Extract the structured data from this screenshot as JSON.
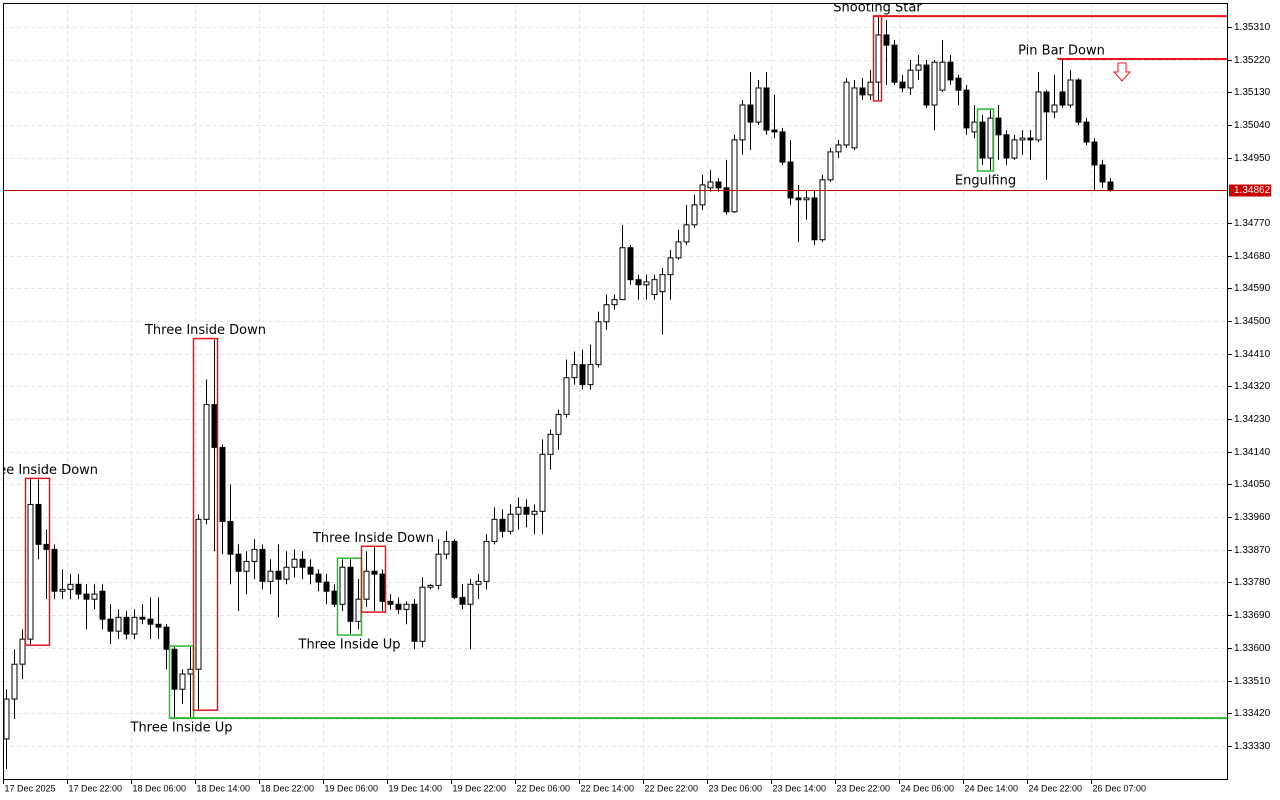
{
  "chart_data": {
    "type": "candlestick",
    "ylim": [
      1.33236,
      1.35376
    ],
    "yticks": [
      {
        "value": 1.3531,
        "label": "1.35310"
      },
      {
        "value": 1.3522,
        "label": "1.35220"
      },
      {
        "value": 1.3513,
        "label": "1.35130"
      },
      {
        "value": 1.3504,
        "label": "1.35040"
      },
      {
        "value": 1.3495,
        "label": "1.34950"
      },
      {
        "value": 1.3477,
        "label": "1.34770"
      },
      {
        "value": 1.3468,
        "label": "1.34680"
      },
      {
        "value": 1.3459,
        "label": "1.34590"
      },
      {
        "value": 1.345,
        "label": "1.34500"
      },
      {
        "value": 1.3441,
        "label": "1.34410"
      },
      {
        "value": 1.3432,
        "label": "1.34320"
      },
      {
        "value": 1.3423,
        "label": "1.34230"
      },
      {
        "value": 1.3414,
        "label": "1.34140"
      },
      {
        "value": 1.3405,
        "label": "1.34050"
      },
      {
        "value": 1.3396,
        "label": "1.33960"
      },
      {
        "value": 1.3387,
        "label": "1.33870"
      },
      {
        "value": 1.3378,
        "label": "1.33780"
      },
      {
        "value": 1.3369,
        "label": "1.33690"
      },
      {
        "value": 1.336,
        "label": "1.33600"
      },
      {
        "value": 1.3351,
        "label": "1.33510"
      },
      {
        "value": 1.3342,
        "label": "1.33420"
      },
      {
        "value": 1.3333,
        "label": "1.33330"
      }
    ],
    "grid": true,
    "current_price": 1.34862,
    "current_price_color": "#c80000",
    "up_color": "#ffffff",
    "down_color": "#000000",
    "categories": [
      "17 Dec 2025",
      null,
      null,
      null,
      null,
      null,
      null,
      null,
      "17 Dec 22:00",
      null,
      null,
      null,
      null,
      null,
      null,
      null,
      "18 Dec 06:00",
      null,
      null,
      null,
      null,
      null,
      null,
      null,
      "18 Dec 14:00",
      null,
      null,
      null,
      null,
      null,
      null,
      null,
      "18 Dec 22:00",
      null,
      null,
      null,
      null,
      null,
      null,
      null,
      "19 Dec 06:00",
      null,
      null,
      null,
      null,
      null,
      null,
      null,
      "19 Dec 14:00",
      null,
      null,
      null,
      null,
      null,
      null,
      null,
      "19 Dec 22:00",
      null,
      null,
      null,
      null,
      null,
      null,
      null,
      "22 Dec 06:00",
      null,
      null,
      null,
      null,
      null,
      null,
      null,
      "22 Dec 14:00",
      null,
      null,
      null,
      null,
      null,
      null,
      null,
      "22 Dec 22:00",
      null,
      null,
      null,
      null,
      null,
      null,
      null,
      "23 Dec 06:00",
      null,
      null,
      null,
      null,
      null,
      null,
      null,
      "23 Dec 14:00",
      null,
      null,
      null,
      null,
      null,
      null,
      null,
      "23 Dec 22:00",
      null,
      null,
      null,
      null,
      null,
      null,
      null,
      "24 Dec 06:00",
      null,
      null,
      null,
      null,
      null,
      null,
      null,
      "24 Dec 14:00",
      null,
      null,
      null,
      null,
      null,
      null,
      null,
      "24 Dec 22:00",
      null,
      null,
      null,
      null,
      null,
      null,
      null,
      "26 Dec 07:00",
      null,
      null
    ],
    "open": [
      1.33349,
      1.33459,
      1.33555,
      1.33624,
      1.33995,
      1.33885,
      1.33871,
      1.33756,
      1.33761,
      1.33775,
      1.33748,
      1.33734,
      1.33756,
      1.33679,
      1.33646,
      1.33684,
      1.33638,
      1.33684,
      1.33679,
      1.33665,
      1.33657,
      1.33596,
      1.33486,
      1.33528,
      1.33541,
      1.33954,
      1.3427,
      1.34152,
      1.33948,
      1.33858,
      1.33811,
      1.33838,
      1.33871,
      1.33783,
      1.33811,
      1.33789,
      1.33822,
      1.33844,
      1.33822,
      1.33803,
      1.33781,
      1.33756,
      1.3372,
      1.33822,
      1.33673,
      1.33734,
      1.33811,
      1.33803,
      1.33728,
      1.3372,
      1.33706,
      1.3372,
      1.33618,
      1.33767,
      1.33772,
      1.33858,
      1.33893,
      1.33739,
      1.3372,
      1.33775,
      1.33783,
      1.33893,
      1.33954,
      1.33921,
      1.33968,
      1.33987,
      1.33968,
      1.33976,
      1.34133,
      1.34188,
      1.34243,
      1.34344,
      1.3438,
      1.34325,
      1.3438,
      1.34498,
      1.34545,
      1.34559,
      1.34702,
      1.34614,
      1.346,
      1.34573,
      1.34581,
      1.34628,
      1.34674,
      1.34718,
      1.34765,
      1.3482,
      1.34867,
      1.34883,
      1.34867,
      1.34801,
      1.34999,
      1.35095,
      1.35048,
      1.35142,
      1.35026,
      1.35021,
      1.34938,
      1.34839,
      1.34834,
      1.34839,
      1.34724,
      1.34889,
      1.34966,
      1.34985,
      1.34977,
      1.35142,
      1.35123,
      1.35158,
      1.35288,
      1.3526,
      1.35158,
      1.35142,
      1.35191,
      1.35205,
      1.35095,
      1.35136,
      1.35213,
      1.35169,
      1.35136,
      1.35021,
      1.35048,
      1.34949,
      1.35059,
      1.35013,
      1.34949,
      1.34999,
      1.35004,
      1.34999,
      1.35131,
      1.35076,
      1.35131,
      1.35095,
      1.35164,
      1.35048,
      1.34993,
      1.3493,
      1.34883
    ],
    "high": [
      1.33486,
      1.33596,
      1.33651,
      1.34064,
      1.34064,
      1.33926,
      1.33885,
      1.33816,
      1.33803,
      1.33803,
      1.33775,
      1.33775,
      1.33775,
      1.3372,
      1.33706,
      1.33701,
      1.33706,
      1.3372,
      1.33739,
      1.33739,
      1.33665,
      1.33602,
      1.33541,
      1.33602,
      1.33968,
      1.34339,
      1.34449,
      1.3416,
      1.3405,
      1.33885,
      1.33866,
      1.33899,
      1.33885,
      1.33844,
      1.33885,
      1.33866,
      1.33871,
      1.33866,
      1.33844,
      1.33816,
      1.33803,
      1.33775,
      1.33844,
      1.33844,
      1.33789,
      1.33866,
      1.33877,
      1.33816,
      1.33748,
      1.33739,
      1.33728,
      1.33734,
      1.33794,
      1.33775,
      1.33899,
      1.33921,
      1.33899,
      1.33775,
      1.33789,
      1.33803,
      1.33913,
      1.33987,
      1.33981,
      1.33995,
      1.34014,
      1.34009,
      1.33995,
      1.34174,
      1.34201,
      1.34256,
      1.34394,
      1.34416,
      1.34421,
      1.34435,
      1.34526,
      1.34573,
      1.34573,
      1.34765,
      1.3471,
      1.34628,
      1.34628,
      1.34628,
      1.34647,
      1.34696,
      1.34751,
      1.3482,
      1.34848,
      1.34903,
      1.34916,
      1.34894,
      1.34944,
      1.35013,
      1.35109,
      1.35186,
      1.35164,
      1.35186,
      1.35123,
      1.35032,
      1.34999,
      1.34875,
      1.34861,
      1.34861,
      1.34903,
      1.34977,
      1.34999,
      1.35169,
      1.35164,
      1.35169,
      1.35191,
      1.35337,
      1.35329,
      1.35274,
      1.35178,
      1.35219,
      1.35233,
      1.35219,
      1.35219,
      1.35274,
      1.35233,
      1.35178,
      1.3515,
      1.35095,
      1.35068,
      1.35081,
      1.35095,
      1.35026,
      1.35013,
      1.35026,
      1.35026,
      1.35186,
      1.35136,
      1.35178,
      1.35219,
      1.35191,
      1.35169,
      1.35059,
      1.35004,
      1.34944,
      1.34894
    ],
    "low": [
      1.33266,
      1.33404,
      1.33514,
      1.3361,
      1.33844,
      1.33734,
      1.33734,
      1.33734,
      1.33734,
      1.33734,
      1.33651,
      1.33706,
      1.33651,
      1.3361,
      1.33624,
      1.33624,
      1.33624,
      1.33665,
      1.33624,
      1.33624,
      1.33541,
      1.33409,
      1.33445,
      1.33409,
      1.33431,
      1.3394,
      1.33866,
      1.33858,
      1.33775,
      1.33701,
      1.33748,
      1.33789,
      1.33761,
      1.33748,
      1.33684,
      1.33775,
      1.33794,
      1.33789,
      1.33775,
      1.33756,
      1.3372,
      1.33712,
      1.33701,
      1.33638,
      1.33651,
      1.33712,
      1.33701,
      1.33701,
      1.33706,
      1.33693,
      1.33665,
      1.33596,
      1.33602,
      1.33761,
      1.33761,
      1.33844,
      1.33734,
      1.33706,
      1.33596,
      1.33734,
      1.33761,
      1.33885,
      1.33904,
      1.33913,
      1.33926,
      1.33932,
      1.33913,
      1.33913,
      1.34091,
      1.34146,
      1.34234,
      1.34325,
      1.34311,
      1.34311,
      1.34372,
      1.34476,
      1.34531,
      1.34559,
      1.346,
      1.34559,
      1.34559,
      1.34559,
      1.34463,
      1.34559,
      1.34669,
      1.3471,
      1.34757,
      1.34806,
      1.34856,
      1.34856,
      1.34793,
      1.34798,
      1.34958,
      1.34971,
      1.3504,
      1.35013,
      1.35004,
      1.3493,
      1.3482,
      1.34718,
      1.34779,
      1.3471,
      1.34718,
      1.34883,
      1.34949,
      1.34977,
      1.34971,
      1.35109,
      1.35109,
      1.35109,
      1.3515,
      1.3515,
      1.35131,
      1.35123,
      1.35164,
      1.35087,
      1.35026,
      1.35131,
      1.3515,
      1.35095,
      1.35013,
      1.35004,
      1.3493,
      1.34916,
      1.34944,
      1.3493,
      1.34944,
      1.34958,
      1.34944,
      1.34993,
      1.34889,
      1.35059,
      1.35087,
      1.35087,
      1.3504,
      1.34985,
      1.34861,
      1.34867,
      1.34856
    ],
    "close": [
      1.33459,
      1.33555,
      1.33624,
      1.33995,
      1.33885,
      1.33871,
      1.33756,
      1.33761,
      1.33775,
      1.33748,
      1.33734,
      1.33748,
      1.33679,
      1.33646,
      1.33684,
      1.33638,
      1.33684,
      1.33679,
      1.33665,
      1.33657,
      1.33596,
      1.33486,
      1.33528,
      1.33541,
      1.33954,
      1.3427,
      1.34152,
      1.33948,
      1.33858,
      1.33811,
      1.33838,
      1.33871,
      1.33783,
      1.33811,
      1.33789,
      1.33822,
      1.33844,
      1.33822,
      1.33803,
      1.33781,
      1.33756,
      1.3372,
      1.33822,
      1.33673,
      1.33734,
      1.33811,
      1.33803,
      1.33728,
      1.3372,
      1.33706,
      1.3372,
      1.33618,
      1.33767,
      1.33772,
      1.33858,
      1.33893,
      1.33739,
      1.3372,
      1.33775,
      1.33783,
      1.33893,
      1.33954,
      1.33921,
      1.33968,
      1.33987,
      1.33968,
      1.33976,
      1.34133,
      1.34188,
      1.34243,
      1.34344,
      1.3438,
      1.34325,
      1.3438,
      1.34498,
      1.34545,
      1.34559,
      1.34702,
      1.34614,
      1.346,
      1.34608,
      1.34614,
      1.34628,
      1.34674,
      1.34718,
      1.34765,
      1.3482,
      1.34875,
      1.34883,
      1.34867,
      1.34801,
      1.34999,
      1.35095,
      1.35048,
      1.35142,
      1.35026,
      1.35021,
      1.34938,
      1.34839,
      1.34834,
      1.34839,
      1.34724,
      1.34889,
      1.34966,
      1.34985,
      1.35158,
      1.35142,
      1.35123,
      1.35158,
      1.35288,
      1.3526,
      1.35158,
      1.35142,
      1.35191,
      1.35205,
      1.35095,
      1.35213,
      1.35213,
      1.35164,
      1.35136,
      1.35032,
      1.35048,
      1.34949,
      1.35059,
      1.35013,
      1.34949,
      1.34999,
      1.35004,
      1.34999,
      1.35131,
      1.35076,
      1.35095,
      1.35095,
      1.35164,
      1.35048,
      1.34993,
      1.3493,
      1.34883,
      1.34862
    ],
    "patterns": [
      {
        "label": "Three Inside Down",
        "color": "#e8141c",
        "start": 3,
        "end": 5,
        "side": "above",
        "box": true
      },
      {
        "label": "Three Inside Up",
        "color": "#2db82d",
        "start": 21,
        "end": 23,
        "side": "below",
        "box": true,
        "level": "low"
      },
      {
        "label": "Three Inside Down",
        "color": "#e8141c",
        "start": 24,
        "end": 26,
        "side": "above",
        "box": true
      },
      {
        "label": "Three Inside Up",
        "color": "#2db82d",
        "start": 42,
        "end": 44,
        "side": "below",
        "box": true
      },
      {
        "label": "Three Inside Down",
        "color": "#e8141c",
        "start": 45,
        "end": 47,
        "side": "above",
        "box": true
      },
      {
        "label": "Shooting Star",
        "color": "#e8141c",
        "start": 109,
        "end": 109,
        "side": "above",
        "box": true,
        "level": "high"
      },
      {
        "label": "Engulfing",
        "color": "#2db82d",
        "start": 122,
        "end": 123,
        "side": "below",
        "box": true
      },
      {
        "label": "Pin Bar Down",
        "color": "#e8141c",
        "start": 132,
        "end": 132,
        "side": "above",
        "box": false,
        "level": "high"
      }
    ]
  }
}
